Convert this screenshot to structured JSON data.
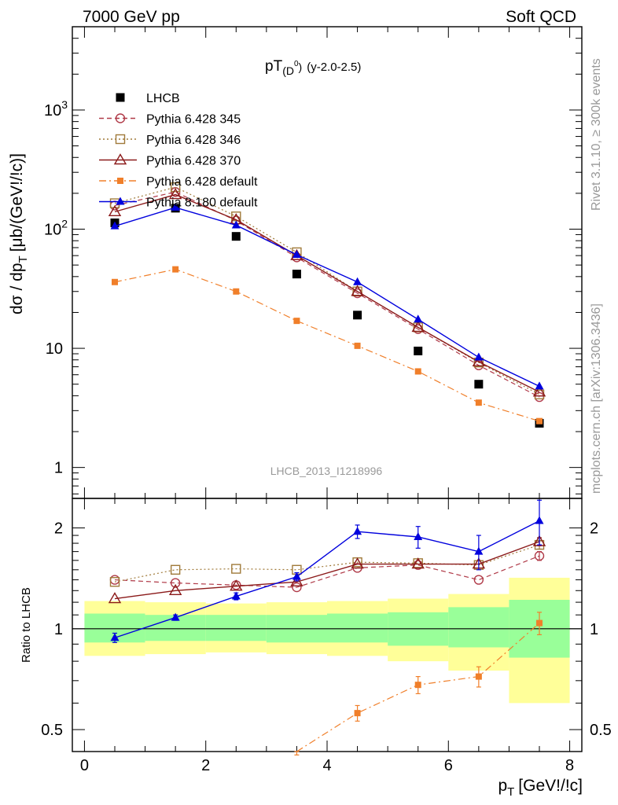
{
  "header": {
    "left": "7000 GeV pp",
    "right": "Soft QCD"
  },
  "side_labels": {
    "rivet": "Rivet 3.1.10, ≥ 300k events",
    "mcplots": "mcplots.cern.ch [arXiv:1306.3436]"
  },
  "chart_data": [
    {
      "type": "scatter",
      "panel": "main",
      "title_main": "pT",
      "title_sub": "(D",
      "title_sup": "0",
      "title_close": ")",
      "title_rest": "(y-2.0-2.5)",
      "ylabel": "dσ / dp",
      "ylabel_sub": "T",
      "ylabel_unit": "[μb/(GeV!/!c)]",
      "watermark": "LHCB_2013_I1218996",
      "y_scale": "log",
      "xlim": [
        -0.2,
        8.2
      ],
      "ylim": [
        0.55,
        5000
      ],
      "ytick_labels": [
        {
          "v": 1,
          "base": "1",
          "exp": ""
        },
        {
          "v": 10,
          "base": "10",
          "exp": ""
        },
        {
          "v": 100,
          "base": "10",
          "exp": "2"
        },
        {
          "v": 1000,
          "base": "10",
          "exp": "3"
        }
      ],
      "legend_position": "top-left",
      "x": [
        0.5,
        1.5,
        2.5,
        3.5,
        4.5,
        5.5,
        6.5,
        7.5
      ],
      "series": [
        {
          "name": "LHCB",
          "style": "data",
          "color": "#000000",
          "values": [
            113,
            150,
            87,
            42,
            19,
            9.5,
            5.0,
            2.35
          ]
        },
        {
          "name": "Pythia 6.428 345",
          "style": "open-circle-dashed",
          "color": "#b03a48",
          "values": [
            158,
            205,
            118,
            58,
            29,
            14.5,
            7.2,
            3.9
          ]
        },
        {
          "name": "Pythia 6.428 346",
          "style": "open-square-dotted",
          "color": "#a07a3a",
          "values": [
            165,
            225,
            128,
            64,
            30,
            15,
            7.6,
            4.1
          ]
        },
        {
          "name": "Pythia 6.428 370",
          "style": "open-triangle-solid",
          "color": "#8b1a1a",
          "values": [
            140,
            195,
            120,
            60,
            30,
            15,
            7.7,
            4.3
          ]
        },
        {
          "name": "Pythia 6.428 default",
          "style": "filled-square-dashdot",
          "color": "#f07f2a",
          "values": [
            36,
            46,
            30,
            17,
            10.5,
            6.4,
            3.5,
            2.45
          ]
        },
        {
          "name": "Pythia 8.180 default",
          "style": "filled-triangle-solid",
          "color": "#0000dd",
          "values": [
            106,
            152,
            108,
            61,
            36,
            17.5,
            8.4,
            4.8
          ]
        }
      ]
    },
    {
      "type": "scatter",
      "panel": "ratio",
      "ylabel": "Ratio to LHCB",
      "xlabel": "p",
      "xlabel_sub": "T",
      "xlabel_unit": "[GeV!/!c]",
      "y_scale": "log",
      "xlim": [
        -0.2,
        8.2
      ],
      "ylim": [
        0.43,
        2.45
      ],
      "xticks": [
        0,
        2,
        4,
        6,
        8
      ],
      "yticks": [
        0.5,
        1,
        2
      ],
      "x": [
        0.5,
        1.5,
        2.5,
        3.5,
        4.5,
        5.5,
        6.5,
        7.5
      ],
      "bands": [
        {
          "lo": 0,
          "hi": 1,
          "yellow": [
            0.83,
            1.21
          ],
          "green": [
            0.91,
            1.11
          ]
        },
        {
          "lo": 1,
          "hi": 2,
          "yellow": [
            0.84,
            1.2
          ],
          "green": [
            0.92,
            1.1
          ]
        },
        {
          "lo": 2,
          "hi": 3,
          "yellow": [
            0.85,
            1.19
          ],
          "green": [
            0.92,
            1.1
          ]
        },
        {
          "lo": 3,
          "hi": 4,
          "yellow": [
            0.84,
            1.2
          ],
          "green": [
            0.91,
            1.1
          ]
        },
        {
          "lo": 4,
          "hi": 5,
          "yellow": [
            0.83,
            1.21
          ],
          "green": [
            0.91,
            1.11
          ]
        },
        {
          "lo": 5,
          "hi": 6,
          "yellow": [
            0.8,
            1.23
          ],
          "green": [
            0.89,
            1.12
          ]
        },
        {
          "lo": 6,
          "hi": 7,
          "yellow": [
            0.75,
            1.27
          ],
          "green": [
            0.88,
            1.16
          ]
        },
        {
          "lo": 7,
          "hi": 8,
          "yellow": [
            0.6,
            1.42
          ],
          "green": [
            0.82,
            1.22
          ]
        }
      ],
      "series": [
        {
          "name": "Pythia 6.428 345",
          "style": "open-circle-dashed",
          "color": "#b03a48",
          "values": [
            1.4,
            1.37,
            1.35,
            1.33,
            1.52,
            1.55,
            1.4,
            1.65
          ],
          "err": [
            0,
            0,
            0,
            0,
            0,
            0,
            0,
            0.05
          ]
        },
        {
          "name": "Pythia 6.428 346",
          "style": "open-square-dotted",
          "color": "#a07a3a",
          "values": [
            1.38,
            1.5,
            1.51,
            1.5,
            1.58,
            1.57,
            1.55,
            1.78
          ],
          "err": [
            0,
            0,
            0,
            0,
            0,
            0,
            0,
            0.05
          ]
        },
        {
          "name": "Pythia 6.428 370",
          "style": "open-triangle-solid",
          "color": "#8b1a1a",
          "values": [
            1.23,
            1.3,
            1.34,
            1.38,
            1.56,
            1.56,
            1.56,
            1.82
          ],
          "err": [
            0,
            0,
            0,
            0,
            0,
            0,
            0,
            0.05
          ]
        },
        {
          "name": "Pythia 6.428 default",
          "style": "filled-square-dashdot",
          "color": "#f07f2a",
          "values": [
            null,
            null,
            null,
            0.41,
            0.56,
            0.68,
            0.72,
            1.04
          ],
          "err": [
            0,
            0,
            0,
            0.01,
            0.03,
            0.04,
            0.05,
            0.08
          ]
        },
        {
          "name": "Pythia 8.180 default",
          "style": "filled-triangle-solid",
          "color": "#0000dd",
          "values": [
            0.94,
            1.08,
            1.25,
            1.43,
            1.95,
            1.88,
            1.7,
            2.1
          ],
          "err": [
            0.03,
            0.02,
            0.03,
            0.04,
            0.09,
            0.14,
            0.2,
            0.32
          ]
        }
      ]
    }
  ]
}
